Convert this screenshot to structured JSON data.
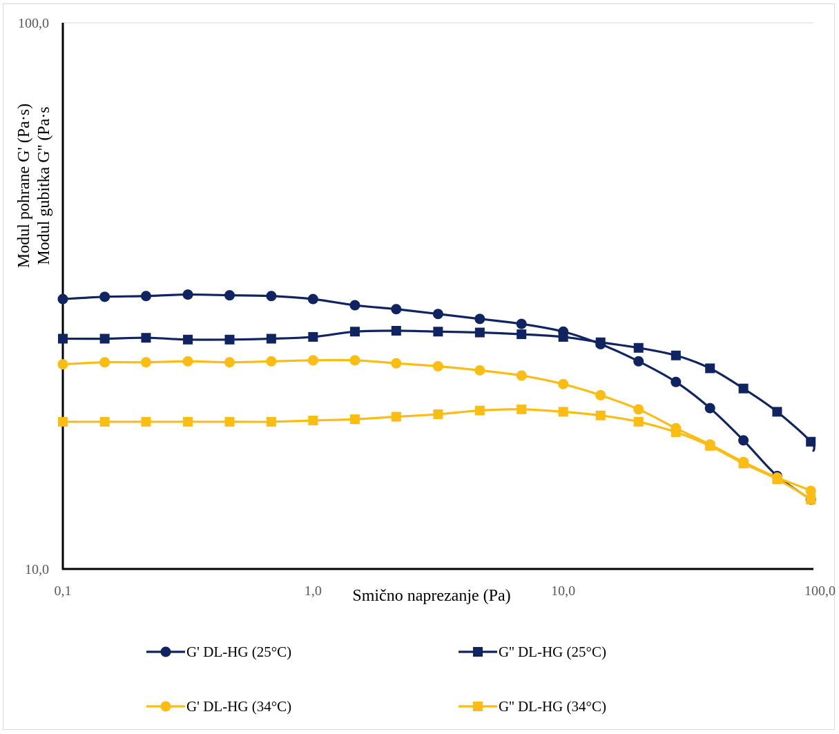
{
  "chart_data": {
    "type": "line",
    "xscale": "log",
    "yscale": "log",
    "xlim": [
      0.1,
      100.0
    ],
    "ylim": [
      10.0,
      100.0
    ],
    "xlabel": "Smično naprezanje (Pa)",
    "ylabel_lines": [
      "Modul pohrane G' (Pa·s)",
      "Modul gubitka G'' (Pa·s"
    ],
    "x_ticks": [
      {
        "value": 0.1,
        "label": "0,1"
      },
      {
        "value": 1.0,
        "label": "1,0"
      },
      {
        "value": 10.0,
        "label": "10,0"
      },
      {
        "value": 100.0,
        "label": "100,0"
      }
    ],
    "y_ticks": [
      {
        "value": 10.0,
        "label": "10,0"
      },
      {
        "value": 100.0,
        "label": "100,0"
      }
    ],
    "grid": {
      "y_major": true,
      "x_major": false
    },
    "legend_position": "bottom",
    "x": [
      0.1,
      0.147,
      0.215,
      0.316,
      0.464,
      0.681,
      1.0,
      1.47,
      2.15,
      3.16,
      4.64,
      6.81,
      10.0,
      14.1,
      20.0,
      28.2,
      38.6,
      52.5,
      71.6,
      97.6,
      100.0
    ],
    "series": [
      {
        "name": "G' DL-HG (25°C)",
        "marker": "circle",
        "color": "#0f2461",
        "values": [
          31.2,
          31.5,
          31.6,
          31.8,
          31.7,
          31.6,
          31.2,
          30.4,
          29.9,
          29.3,
          28.7,
          28.1,
          27.2,
          25.8,
          24.0,
          22.0,
          19.7,
          17.2,
          14.8,
          13.4,
          13.2
        ]
      },
      {
        "name": "G'' DL-HG (25°C)",
        "marker": "square",
        "color": "#0f2461",
        "values": [
          26.4,
          26.4,
          26.5,
          26.3,
          26.3,
          26.4,
          26.6,
          27.2,
          27.3,
          27.2,
          27.1,
          26.9,
          26.6,
          26.0,
          25.4,
          24.6,
          23.3,
          21.4,
          19.4,
          17.1,
          16.4
        ]
      },
      {
        "name": "G' DL-HG (34°C)",
        "marker": "circle",
        "color": "#fbbd14",
        "values": [
          23.7,
          23.9,
          23.9,
          24.0,
          23.9,
          24.0,
          24.1,
          24.1,
          23.8,
          23.5,
          23.1,
          22.6,
          21.8,
          20.8,
          19.6,
          18.1,
          16.9,
          15.7,
          14.7,
          13.9,
          13.6
        ]
      },
      {
        "name": "G'' DL-HG (34°C)",
        "marker": "square",
        "color": "#fbbd14",
        "values": [
          18.6,
          18.6,
          18.6,
          18.6,
          18.6,
          18.6,
          18.7,
          18.8,
          19.0,
          19.2,
          19.5,
          19.6,
          19.4,
          19.1,
          18.6,
          17.8,
          16.8,
          15.6,
          14.6,
          13.4,
          13.1
        ]
      }
    ]
  }
}
